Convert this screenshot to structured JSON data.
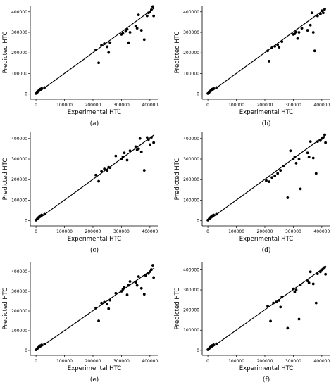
{
  "chart_data": [
    {
      "panel": "(a)",
      "type": "scatter",
      "xlabel": "Experimental HTC",
      "ylabel": "Predicted HTC",
      "xlim": [
        -20000,
        430000
      ],
      "ylim": [
        -25000,
        430000
      ],
      "xticks": [
        0,
        100000,
        200000,
        300000,
        400000
      ],
      "yticks": [
        0,
        100000,
        200000,
        300000,
        400000
      ],
      "grid": false,
      "fit_line": {
        "x": [
          0,
          415000
        ],
        "y": [
          0,
          418000
        ]
      },
      "points": [
        [
          0,
          3000
        ],
        [
          4000,
          8000
        ],
        [
          6000,
          12000
        ],
        [
          9000,
          16000
        ],
        [
          12000,
          20000
        ],
        [
          15000,
          24000
        ],
        [
          20000,
          28000
        ],
        [
          30000,
          32000
        ],
        [
          210000,
          215000
        ],
        [
          220000,
          152000
        ],
        [
          230000,
          238000
        ],
        [
          240000,
          245000
        ],
        [
          250000,
          230000
        ],
        [
          255000,
          202000
        ],
        [
          260000,
          250000
        ],
        [
          300000,
          290000
        ],
        [
          305000,
          295000
        ],
        [
          315000,
          305000
        ],
        [
          320000,
          315000
        ],
        [
          325000,
          250000
        ],
        [
          330000,
          300000
        ],
        [
          350000,
          330000
        ],
        [
          355000,
          320000
        ],
        [
          360000,
          385000
        ],
        [
          370000,
          310000
        ],
        [
          380000,
          265000
        ],
        [
          390000,
          380000
        ],
        [
          395000,
          395000
        ],
        [
          400000,
          400000
        ],
        [
          405000,
          410000
        ],
        [
          410000,
          425000
        ],
        [
          413000,
          380000
        ]
      ]
    },
    {
      "panel": "(b)",
      "type": "scatter",
      "xlabel": "Experimental HTC",
      "ylabel": "Predicted HTC",
      "xlim": [
        -20000,
        430000
      ],
      "ylim": [
        -25000,
        430000
      ],
      "xticks": [
        0,
        100000,
        200000,
        300000,
        400000
      ],
      "yticks": [
        0,
        100000,
        200000,
        300000,
        400000
      ],
      "grid": false,
      "fit_line": {
        "x": [
          0,
          415000
        ],
        "y": [
          0,
          418000
        ]
      },
      "points": [
        [
          0,
          3000
        ],
        [
          4000,
          8000
        ],
        [
          6000,
          12000
        ],
        [
          9000,
          16000
        ],
        [
          12000,
          20000
        ],
        [
          15000,
          24000
        ],
        [
          20000,
          28000
        ],
        [
          30000,
          32000
        ],
        [
          210000,
          210000
        ],
        [
          215000,
          160000
        ],
        [
          225000,
          225000
        ],
        [
          235000,
          232000
        ],
        [
          245000,
          240000
        ],
        [
          250000,
          228000
        ],
        [
          260000,
          255000
        ],
        [
          300000,
          290000
        ],
        [
          305000,
          293000
        ],
        [
          310000,
          302000
        ],
        [
          315000,
          270000
        ],
        [
          320000,
          300000
        ],
        [
          330000,
          320000
        ],
        [
          350000,
          310000
        ],
        [
          360000,
          335000
        ],
        [
          365000,
          395000
        ],
        [
          370000,
          300000
        ],
        [
          375000,
          210000
        ],
        [
          385000,
          380000
        ],
        [
          395000,
          390000
        ],
        [
          400000,
          405000
        ],
        [
          405000,
          395000
        ],
        [
          410000,
          412000
        ]
      ]
    },
    {
      "panel": "(c)",
      "type": "scatter",
      "xlabel": "Experimental HTC",
      "ylabel": "Predicted HTC",
      "xlim": [
        -20000,
        430000
      ],
      "ylim": [
        -25000,
        430000
      ],
      "xticks": [
        0,
        100000,
        200000,
        300000,
        400000
      ],
      "yticks": [
        0,
        100000,
        200000,
        300000,
        400000
      ],
      "grid": false,
      "fit_line": {
        "x": [
          0,
          415000
        ],
        "y": [
          0,
          418000
        ]
      },
      "points": [
        [
          0,
          3000
        ],
        [
          4000,
          8000
        ],
        [
          6000,
          12000
        ],
        [
          9000,
          16000
        ],
        [
          12000,
          20000
        ],
        [
          15000,
          24000
        ],
        [
          20000,
          28000
        ],
        [
          30000,
          32000
        ],
        [
          210000,
          222000
        ],
        [
          220000,
          192000
        ],
        [
          230000,
          240000
        ],
        [
          240000,
          252000
        ],
        [
          250000,
          245000
        ],
        [
          255000,
          260000
        ],
        [
          260000,
          258000
        ],
        [
          280000,
          315000
        ],
        [
          300000,
          300000
        ],
        [
          305000,
          310000
        ],
        [
          310000,
          330000
        ],
        [
          320000,
          295000
        ],
        [
          330000,
          340000
        ],
        [
          350000,
          360000
        ],
        [
          355000,
          345000
        ],
        [
          360000,
          350000
        ],
        [
          365000,
          400000
        ],
        [
          370000,
          335000
        ],
        [
          380000,
          245000
        ],
        [
          390000,
          405000
        ],
        [
          395000,
          395000
        ],
        [
          400000,
          370000
        ],
        [
          405000,
          405000
        ],
        [
          413000,
          380000
        ]
      ]
    },
    {
      "panel": "(d)",
      "type": "scatter",
      "xlabel": "Experimental HTC",
      "ylabel": "Predicted HTC",
      "xlim": [
        -20000,
        430000
      ],
      "ylim": [
        -25000,
        430000
      ],
      "xticks": [
        0,
        100000,
        200000,
        300000,
        400000
      ],
      "yticks": [
        0,
        100000,
        200000,
        300000,
        400000
      ],
      "grid": false,
      "fit_line": {
        "x": [
          0,
          415000
        ],
        "y": [
          0,
          418000
        ]
      },
      "points": [
        [
          0,
          3000
        ],
        [
          4000,
          8000
        ],
        [
          6000,
          12000
        ],
        [
          9000,
          16000
        ],
        [
          12000,
          20000
        ],
        [
          15000,
          24000
        ],
        [
          20000,
          28000
        ],
        [
          30000,
          32000
        ],
        [
          205000,
          195000
        ],
        [
          215000,
          190000
        ],
        [
          225000,
          210000
        ],
        [
          235000,
          218000
        ],
        [
          245000,
          230000
        ],
        [
          255000,
          245000
        ],
        [
          265000,
          265000
        ],
        [
          280000,
          112000
        ],
        [
          290000,
          340000
        ],
        [
          300000,
          300000
        ],
        [
          305000,
          310000
        ],
        [
          310000,
          280000
        ],
        [
          320000,
          300000
        ],
        [
          325000,
          155000
        ],
        [
          350000,
          330000
        ],
        [
          355000,
          310000
        ],
        [
          360000,
          385000
        ],
        [
          370000,
          305000
        ],
        [
          380000,
          230000
        ],
        [
          385000,
          385000
        ],
        [
          395000,
          390000
        ],
        [
          400000,
          400000
        ],
        [
          405000,
          405000
        ],
        [
          410000,
          418000
        ],
        [
          413000,
          380000
        ]
      ]
    },
    {
      "panel": "(e)",
      "type": "scatter",
      "xlabel": "Experimental HTC",
      "ylabel": "Predicted HTC",
      "xlim": [
        -20000,
        430000
      ],
      "ylim": [
        -25000,
        450000
      ],
      "xticks": [
        0,
        100000,
        200000,
        300000,
        400000
      ],
      "yticks": [
        0,
        100000,
        200000,
        300000,
        400000
      ],
      "grid": false,
      "fit_line": {
        "x": [
          0,
          415000
        ],
        "y": [
          0,
          418000
        ]
      },
      "points": [
        [
          0,
          3000
        ],
        [
          4000,
          8000
        ],
        [
          6000,
          12000
        ],
        [
          9000,
          16000
        ],
        [
          12000,
          20000
        ],
        [
          15000,
          24000
        ],
        [
          20000,
          28000
        ],
        [
          30000,
          32000
        ],
        [
          210000,
          215000
        ],
        [
          220000,
          150000
        ],
        [
          230000,
          240000
        ],
        [
          240000,
          245000
        ],
        [
          250000,
          235000
        ],
        [
          255000,
          212000
        ],
        [
          260000,
          255000
        ],
        [
          280000,
          290000
        ],
        [
          300000,
          300000
        ],
        [
          305000,
          310000
        ],
        [
          310000,
          320000
        ],
        [
          320000,
          282000
        ],
        [
          325000,
          330000
        ],
        [
          330000,
          350000
        ],
        [
          350000,
          345000
        ],
        [
          355000,
          330000
        ],
        [
          360000,
          375000
        ],
        [
          370000,
          315000
        ],
        [
          380000,
          285000
        ],
        [
          385000,
          380000
        ],
        [
          395000,
          390000
        ],
        [
          400000,
          400000
        ],
        [
          405000,
          410000
        ],
        [
          410000,
          432000
        ],
        [
          413000,
          370000
        ]
      ]
    },
    {
      "panel": "(f)",
      "type": "scatter",
      "xlabel": "Experimental HTC",
      "ylabel": "Predicted HTC",
      "xlim": [
        -20000,
        430000
      ],
      "ylim": [
        -25000,
        440000
      ],
      "xticks": [
        0,
        100000,
        200000,
        300000,
        400000
      ],
      "yticks": [
        0,
        100000,
        200000,
        300000,
        400000
      ],
      "grid": false,
      "fit_line": {
        "x": [
          0,
          415000
        ],
        "y": [
          0,
          418000
        ]
      },
      "points": [
        [
          0,
          3000
        ],
        [
          4000,
          8000
        ],
        [
          6000,
          12000
        ],
        [
          9000,
          16000
        ],
        [
          12000,
          20000
        ],
        [
          15000,
          24000
        ],
        [
          20000,
          28000
        ],
        [
          30000,
          32000
        ],
        [
          210000,
          220000
        ],
        [
          220000,
          145000
        ],
        [
          230000,
          235000
        ],
        [
          240000,
          240000
        ],
        [
          250000,
          248000
        ],
        [
          255000,
          215000
        ],
        [
          260000,
          265000
        ],
        [
          280000,
          110000
        ],
        [
          300000,
          305000
        ],
        [
          305000,
          290000
        ],
        [
          310000,
          300000
        ],
        [
          320000,
          155000
        ],
        [
          325000,
          325000
        ],
        [
          350000,
          345000
        ],
        [
          355000,
          335000
        ],
        [
          360000,
          390000
        ],
        [
          370000,
          330000
        ],
        [
          380000,
          235000
        ],
        [
          385000,
          380000
        ],
        [
          395000,
          390000
        ],
        [
          400000,
          400000
        ],
        [
          405000,
          405000
        ],
        [
          410000,
          412000
        ],
        [
          413000,
          378000
        ]
      ]
    }
  ]
}
